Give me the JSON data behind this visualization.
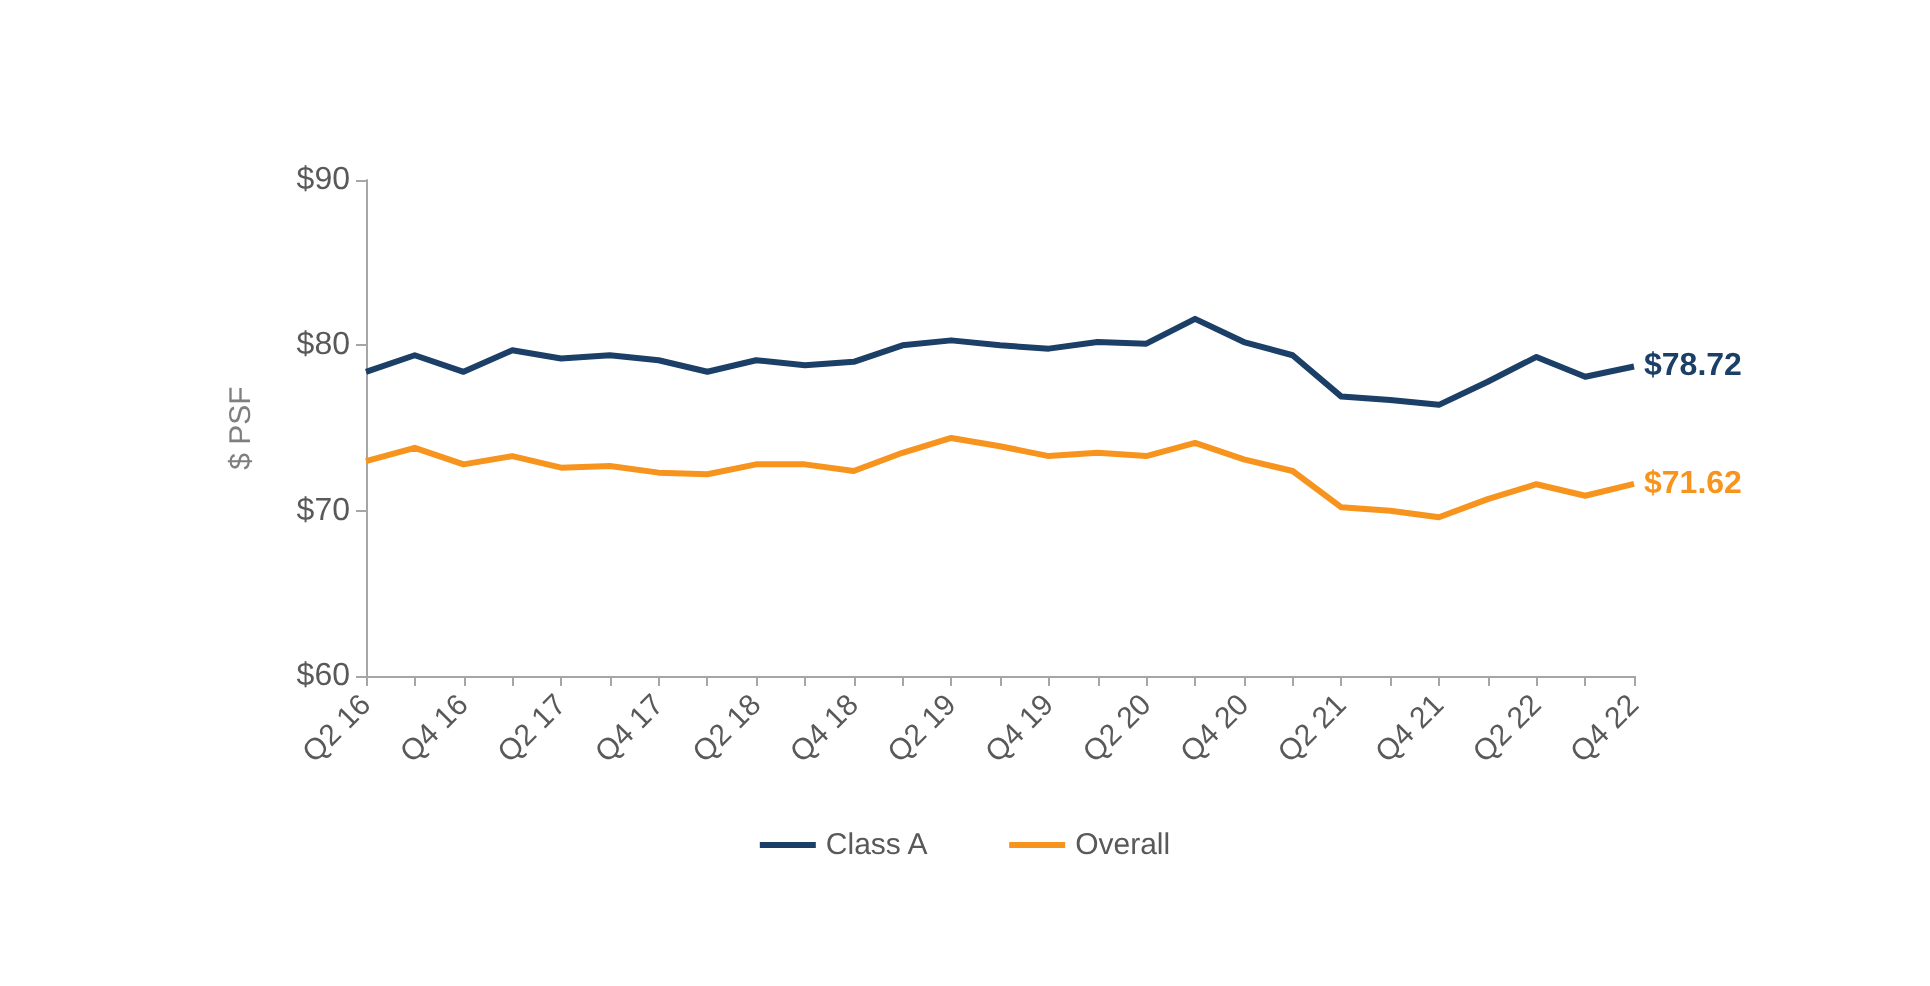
{
  "chart_data": {
    "type": "line",
    "ylabel": "$ PSF",
    "categories": [
      "Q2 16",
      null,
      "Q4 16",
      null,
      "Q2 17",
      null,
      "Q4 17",
      null,
      "Q2 18",
      null,
      "Q4 18",
      null,
      "Q2 19",
      null,
      "Q4 19",
      null,
      "Q2 20",
      null,
      "Q4 20",
      null,
      "Q2 21",
      null,
      "Q4 21",
      null,
      "Q2 22",
      null,
      "Q4 22"
    ],
    "series": [
      {
        "name": "Class A",
        "color": "#1b3f66",
        "values": [
          78.4,
          79.4,
          78.4,
          79.7,
          79.2,
          79.4,
          79.1,
          78.4,
          79.1,
          78.8,
          79.0,
          80.0,
          80.3,
          80.0,
          79.8,
          80.2,
          80.1,
          81.6,
          80.2,
          79.4,
          76.9,
          76.7,
          76.4,
          77.8,
          79.3,
          78.1,
          78.72
        ],
        "value_labels": [
          null,
          null,
          null,
          null,
          null,
          null,
          null,
          null,
          null,
          null,
          null,
          null,
          null,
          null,
          null,
          null,
          null,
          null,
          null,
          null,
          null,
          null,
          null,
          null,
          null,
          null,
          "$78.72"
        ]
      },
      {
        "name": "Overall",
        "color": "#f7941d",
        "values": [
          73.0,
          73.8,
          72.8,
          73.3,
          72.6,
          72.7,
          72.3,
          72.2,
          72.8,
          72.8,
          72.4,
          73.5,
          74.4,
          73.9,
          73.3,
          73.5,
          73.3,
          74.1,
          73.1,
          72.4,
          70.2,
          70.0,
          69.6,
          70.7,
          71.6,
          70.9,
          71.62
        ],
        "value_labels": [
          null,
          null,
          null,
          null,
          null,
          null,
          null,
          null,
          null,
          null,
          null,
          null,
          null,
          null,
          null,
          null,
          null,
          null,
          null,
          null,
          null,
          null,
          null,
          null,
          null,
          null,
          "$71.62"
        ]
      }
    ],
    "ylim": [
      60,
      90
    ],
    "yticks": [
      {
        "value": 60,
        "label": "$60"
      },
      {
        "value": 70,
        "label": "$70"
      },
      {
        "value": 80,
        "label": "$80"
      },
      {
        "value": 90,
        "label": "$90"
      }
    ],
    "grid": false,
    "legend": "bottom"
  }
}
